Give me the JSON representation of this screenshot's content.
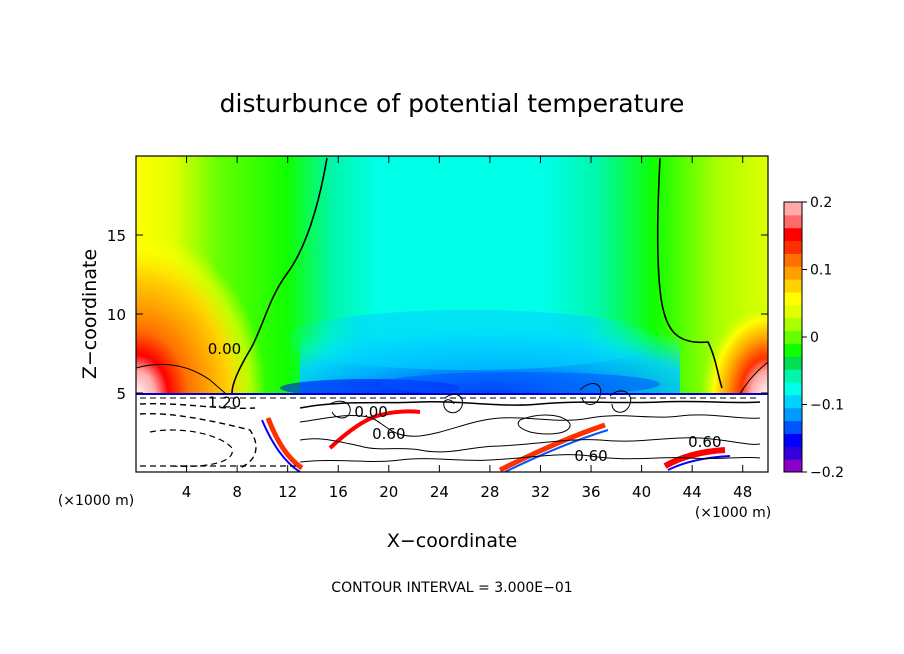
{
  "chart_data": {
    "type": "heatmap",
    "title": "disturbunce of potential temperature",
    "xlabel": "X−coordinate",
    "ylabel": "Z−coordinate",
    "x_unit": "(×1000 m)",
    "x_unit_right": "(×1000 m)",
    "footer": "CONTOUR INTERVAL = 3.000E−01",
    "xlim": [
      0,
      50
    ],
    "ylim": [
      0,
      20
    ],
    "x_ticks": [
      4,
      8,
      12,
      16,
      20,
      24,
      28,
      32,
      36,
      40,
      44,
      48
    ],
    "y_ticks": [
      5,
      10,
      15
    ],
    "colorbar": {
      "min": -0.2,
      "max": 0.2,
      "tick_values": [
        0.2,
        0.1,
        0,
        -0.1,
        -0.2
      ],
      "tick_labels": [
        "0.2",
        "0.1",
        "0",
        "−0.1",
        "−0.2"
      ],
      "colors": [
        "#8b00c8",
        "#3300dd",
        "#0000ff",
        "#0055ff",
        "#009bff",
        "#00d2ff",
        "#00ffe6",
        "#00f7aa",
        "#00e050",
        "#10ff00",
        "#66ff00",
        "#aaff00",
        "#e0ff00",
        "#ffff00",
        "#ffd200",
        "#ffa000",
        "#ff7000",
        "#ff3000",
        "#ff0000",
        "#ff6a6a",
        "#ffaaaa"
      ]
    },
    "contour_labels": [
      {
        "text": "0.00",
        "x": 7.0,
        "z": 7.8
      },
      {
        "text": "0.00",
        "x": 18.6,
        "z": 3.8
      },
      {
        "text": "0.60",
        "x": 20.0,
        "z": 2.4
      },
      {
        "text": "0.60",
        "x": 36.0,
        "z": 1.0
      },
      {
        "text": "0.60",
        "x": 45.0,
        "z": 1.9
      },
      {
        "text": "1.20",
        "x": 7.0,
        "z": 4.4
      }
    ]
  }
}
